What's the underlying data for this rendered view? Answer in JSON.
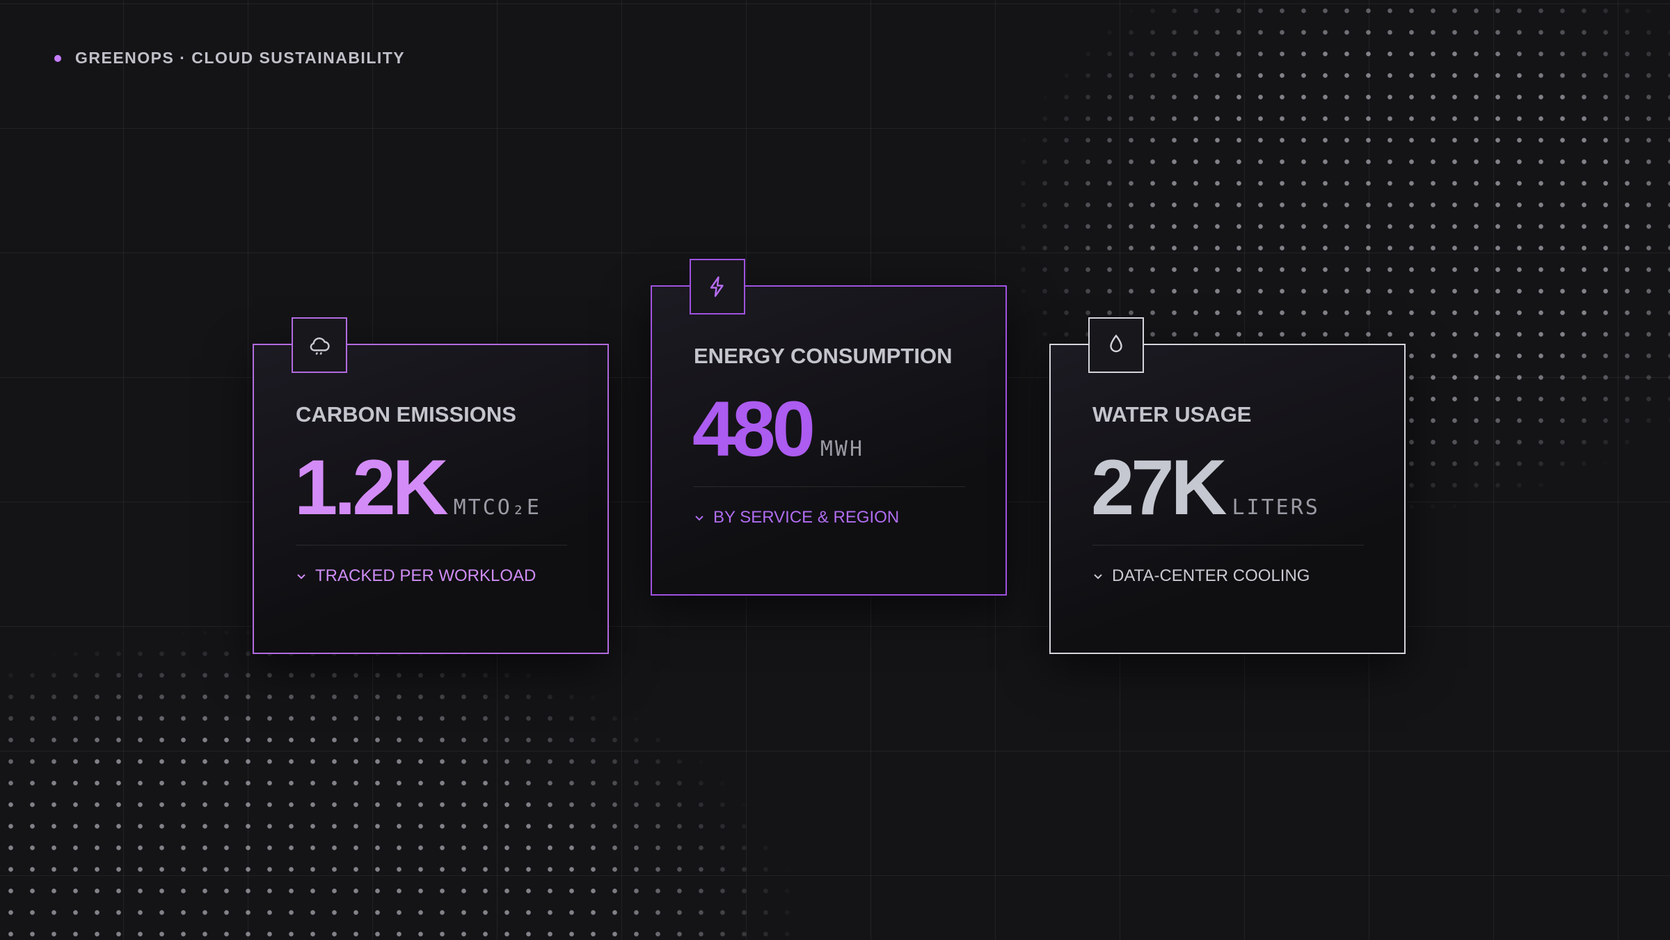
{
  "header": {
    "label": "GREENOPS · CLOUD SUSTAINABILITY"
  },
  "cards": [
    {
      "title": "CARBON EMISSIONS",
      "value": "1.2K",
      "unit": "MTCO₂E",
      "note": "TRACKED PER WORKLOAD"
    },
    {
      "title": "ENERGY CONSUMPTION",
      "value": "480",
      "unit": "MWH",
      "note": "BY SERVICE & REGION"
    },
    {
      "title": "WATER USAGE",
      "value": "27K",
      "unit": "LITERS",
      "note": "DATA-CENTER COOLING"
    }
  ]
}
